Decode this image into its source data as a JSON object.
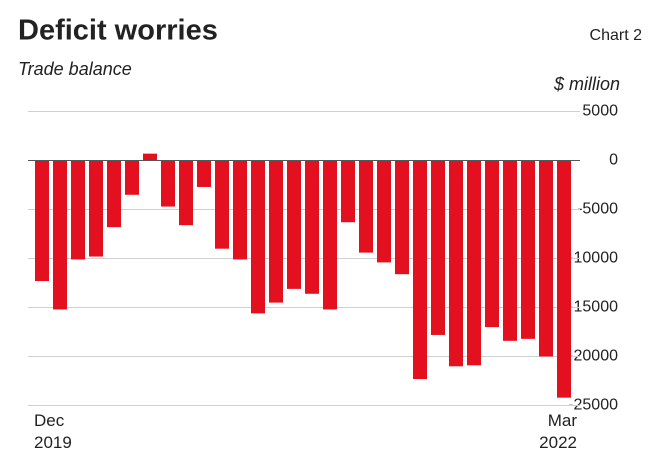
{
  "chart_data": {
    "type": "bar",
    "title": "Deficit worries",
    "subtitle": "Trade balance",
    "label": "Chart 2",
    "y_label": "$ million",
    "categories": [
      "Dec 2019",
      null,
      null,
      null,
      null,
      null,
      null,
      null,
      null,
      null,
      null,
      null,
      null,
      null,
      null,
      null,
      null,
      null,
      null,
      null,
      null,
      null,
      null,
      null,
      null,
      null,
      null,
      null,
      null,
      "Mar 2022"
    ],
    "values": [
      -12300,
      -15200,
      -10100,
      -9800,
      -6800,
      -3500,
      700,
      -4700,
      -6600,
      -2700,
      -9000,
      -10100,
      -15600,
      -14500,
      -13100,
      -13600,
      -15200,
      -6300,
      -9400,
      -10400,
      -11600,
      -22300,
      -17800,
      -21000,
      -20900,
      -17000,
      -18400,
      -18200,
      -20000,
      -24200
    ],
    "color": "#e3101f",
    "ylim": [
      -25000,
      5000
    ],
    "yticks": [
      5000,
      0,
      -5000,
      -10000,
      -15000,
      -20000,
      -25000
    ],
    "grid": true
  }
}
